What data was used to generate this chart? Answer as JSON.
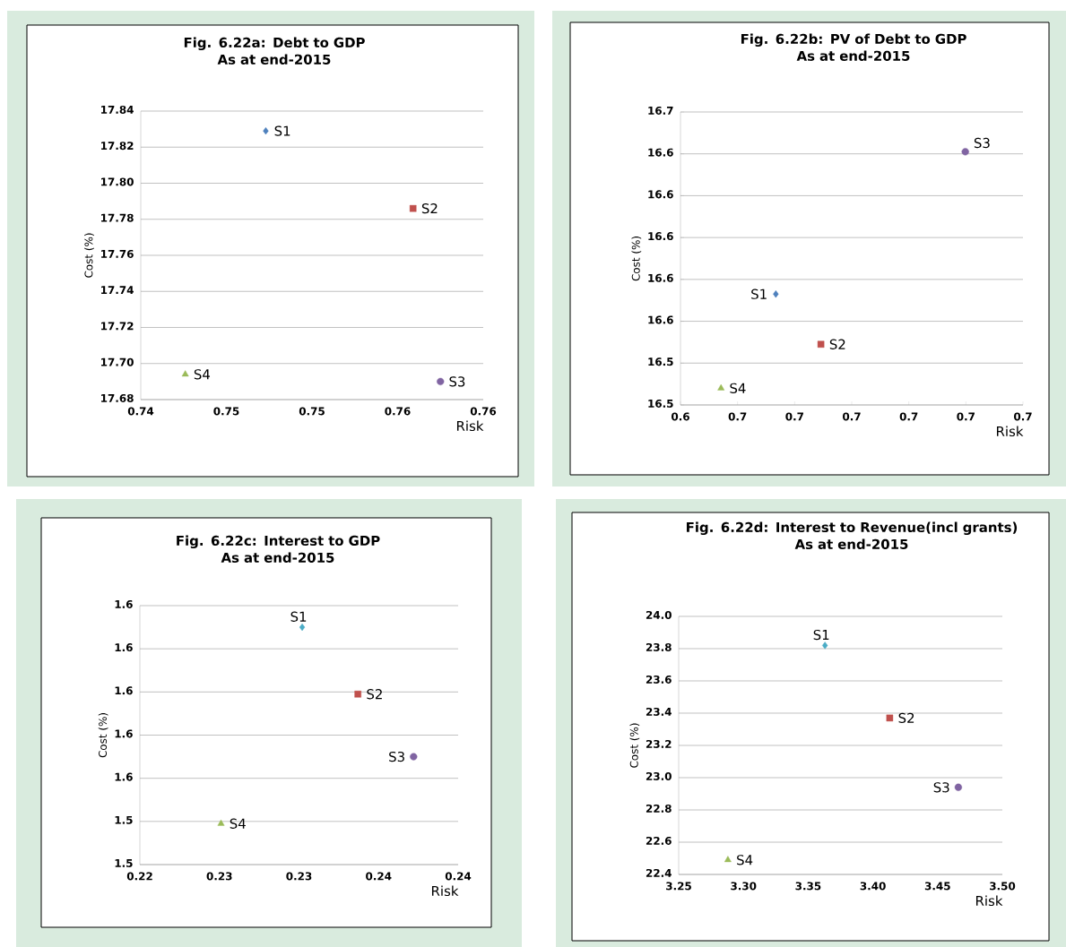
{
  "chart_data": [
    {
      "type": "scatter",
      "title": "Fig. 6.22a: Debt to GDP",
      "subtitle": "As at end-2015",
      "xlabel": "Risk",
      "ylabel": "Cost (%)",
      "grid": "y",
      "xlim": [
        0.74,
        0.76
      ],
      "ylim": [
        17.68,
        17.84
      ],
      "xticks": [
        0.74,
        {
          "value": 0.745,
          "label": "0.75"
        },
        0.75,
        {
          "value": 0.755,
          "label": "0.76"
        },
        0.76
      ],
      "yticks": [
        17.68,
        {
          "value": 17.7,
          "label": "17.70"
        },
        17.72,
        17.74,
        17.76,
        17.78,
        {
          "value": 17.8,
          "label": "17.80"
        },
        17.82,
        17.84
      ],
      "series": [
        {
          "name": "S1",
          "color": "#4f81bd",
          "marker": "diamond",
          "x": [
            0.7473
          ],
          "values": [
            17.829
          ]
        },
        {
          "name": "S2",
          "color": "#c0504d",
          "marker": "square",
          "x": [
            0.7559
          ],
          "values": [
            17.786
          ]
        },
        {
          "name": "S3",
          "color": "#8064a2",
          "marker": "circle",
          "x": [
            0.7575
          ],
          "values": [
            17.69
          ]
        },
        {
          "name": "S4",
          "color": "#9bbb59",
          "marker": "triangle",
          "x": [
            0.7426
          ],
          "values": [
            17.694
          ]
        }
      ]
    },
    {
      "type": "scatter",
      "title": "Fig. 6.22b: PV of Debt to GDP",
      "subtitle": "As at end-2015",
      "xlabel": "Risk",
      "ylabel": "Cost (%)",
      "grid": "y",
      "xlim": [
        0.64,
        0.7
      ],
      "ylim": [
        16.52,
        16.66
      ],
      "xticks": [
        {
          "value": 0.64,
          "label": "0.6"
        },
        {
          "value": 0.65,
          "label": "0.7"
        },
        {
          "value": 0.66,
          "label": "0.7"
        },
        {
          "value": 0.67,
          "label": "0.7"
        },
        {
          "value": 0.68,
          "label": "0.7"
        },
        {
          "value": 0.69,
          "label": "0.7"
        },
        0.7
      ],
      "yticks": [
        {
          "value": 16.52,
          "label": "16.5"
        },
        {
          "value": 16.54,
          "label": "16.5"
        },
        {
          "value": 16.56,
          "label": "16.6"
        },
        {
          "value": 16.58,
          "label": "16.6"
        },
        16.6,
        {
          "value": 16.62,
          "label": "16.6"
        },
        {
          "value": 16.64,
          "label": "16.6"
        },
        {
          "value": 16.66,
          "label": "16.7"
        }
      ],
      "series": [
        {
          "name": "S1",
          "color": "#4f81bd",
          "marker": "diamond",
          "x": [
            0.6567
          ],
          "values": [
            16.573
          ]
        },
        {
          "name": "S2",
          "color": "#c0504d",
          "marker": "square",
          "x": [
            0.6646
          ],
          "values": [
            16.549
          ]
        },
        {
          "name": "S3",
          "color": "#8064a2",
          "marker": "circle",
          "x": [
            0.6899
          ],
          "values": [
            16.641
          ]
        },
        {
          "name": "S4",
          "color": "#9bbb59",
          "marker": "triangle",
          "x": [
            0.6471
          ],
          "values": [
            16.528
          ]
        }
      ]
    },
    {
      "type": "scatter",
      "title": "Fig. 6.22c: Interest to GDP",
      "subtitle": "As at end-2015",
      "xlabel": "Risk",
      "ylabel": "Cost (%)",
      "grid": "y",
      "xlim": [
        0.22,
        0.24
      ],
      "ylim": [
        1.52,
        1.64
      ],
      "xticks": [
        0.22,
        {
          "value": 0.225,
          "label": "0.23"
        },
        0.23,
        {
          "value": 0.235,
          "label": "0.24"
        },
        0.24
      ],
      "yticks": [
        {
          "value": 1.52,
          "label": "1.5"
        },
        {
          "value": 1.54,
          "label": "1.5"
        },
        {
          "value": 1.56,
          "label": "1.6"
        },
        {
          "value": 1.58,
          "label": "1.6"
        },
        1.6,
        {
          "value": 1.62,
          "label": "1.6"
        },
        {
          "value": 1.64,
          "label": "1.6"
        }
      ],
      "series": [
        {
          "name": "S1",
          "color": "#4bacc6",
          "marker": "diamond",
          "x": [
            0.2302
          ],
          "values": [
            1.63
          ]
        },
        {
          "name": "S2",
          "color": "#c0504d",
          "marker": "square",
          "x": [
            0.2337
          ],
          "values": [
            1.599
          ]
        },
        {
          "name": "S3",
          "color": "#8064a2",
          "marker": "circle",
          "x": [
            0.2372
          ],
          "values": [
            1.57
          ]
        },
        {
          "name": "S4",
          "color": "#9bbb59",
          "marker": "triangle",
          "x": [
            0.2251
          ],
          "values": [
            1.539
          ]
        }
      ]
    },
    {
      "type": "scatter",
      "title": "Fig. 6.22d: Interest to Revenue(incl grants)",
      "subtitle": "As at end-2015",
      "xlabel": "Risk",
      "ylabel": "Cost (%)",
      "grid": "y",
      "xlim": [
        3.25,
        3.5
      ],
      "ylim": [
        22.4,
        24.0
      ],
      "xticks": [
        3.25,
        {
          "value": 3.3,
          "label": "3.30"
        },
        3.35,
        {
          "value": 3.4,
          "label": "3.40"
        },
        3.45,
        {
          "value": 3.5,
          "label": "3.50"
        }
      ],
      "yticks": [
        22.4,
        22.6,
        22.8,
        {
          "value": 23.0,
          "label": "23.0"
        },
        23.2,
        23.4,
        23.6,
        23.8,
        {
          "value": 24.0,
          "label": "24.0"
        }
      ],
      "series": [
        {
          "name": "S1",
          "color": "#4bacc6",
          "marker": "diamond",
          "x": [
            3.363
          ],
          "values": [
            23.82
          ]
        },
        {
          "name": "S2",
          "color": "#c0504d",
          "marker": "square",
          "x": [
            3.413
          ],
          "values": [
            23.37
          ]
        },
        {
          "name": "S3",
          "color": "#8064a2",
          "marker": "circle",
          "x": [
            3.466
          ],
          "values": [
            22.94
          ]
        },
        {
          "name": "S4",
          "color": "#9bbb59",
          "marker": "triangle",
          "x": [
            3.288
          ],
          "values": [
            22.49
          ]
        }
      ]
    }
  ]
}
